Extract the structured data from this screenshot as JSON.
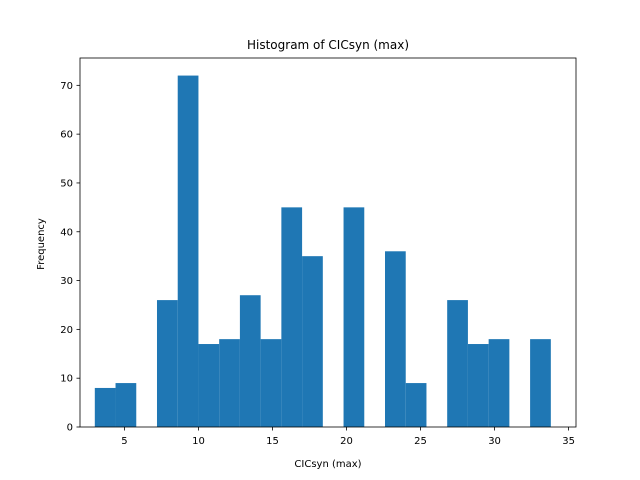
{
  "chart_data": {
    "type": "histogram",
    "title": "Histogram of CICsyn (max)",
    "xlabel": "CICsyn (max)",
    "ylabel": "Frequency",
    "xlim": [
      2.0,
      35.5
    ],
    "ylim": [
      0,
      75.6
    ],
    "xticks": [
      5,
      10,
      15,
      20,
      25,
      30,
      35
    ],
    "yticks": [
      0,
      10,
      20,
      30,
      40,
      50,
      60,
      70
    ],
    "bar_color": "#1f77b4",
    "grid": false,
    "bins": [
      {
        "x0": 3.0,
        "x1": 4.4,
        "count": 8
      },
      {
        "x0": 4.4,
        "x1": 5.8,
        "count": 9
      },
      {
        "x0": 5.8,
        "x1": 7.2,
        "count": 0
      },
      {
        "x0": 7.2,
        "x1": 8.6,
        "count": 26
      },
      {
        "x0": 8.6,
        "x1": 10.0,
        "count": 72
      },
      {
        "x0": 10.0,
        "x1": 11.4,
        "count": 17
      },
      {
        "x0": 11.4,
        "x1": 12.8,
        "count": 18
      },
      {
        "x0": 12.8,
        "x1": 14.2,
        "count": 27
      },
      {
        "x0": 14.2,
        "x1": 15.6,
        "count": 18
      },
      {
        "x0": 15.6,
        "x1": 17.0,
        "count": 45
      },
      {
        "x0": 17.0,
        "x1": 18.4,
        "count": 35
      },
      {
        "x0": 18.4,
        "x1": 19.8,
        "count": 0
      },
      {
        "x0": 19.8,
        "x1": 21.2,
        "count": 45
      },
      {
        "x0": 21.2,
        "x1": 22.6,
        "count": 0
      },
      {
        "x0": 22.6,
        "x1": 24.0,
        "count": 36
      },
      {
        "x0": 24.0,
        "x1": 25.4,
        "count": 9
      },
      {
        "x0": 25.4,
        "x1": 26.8,
        "count": 0
      },
      {
        "x0": 26.8,
        "x1": 28.2,
        "count": 26
      },
      {
        "x0": 28.2,
        "x1": 29.6,
        "count": 17
      },
      {
        "x0": 29.6,
        "x1": 31.0,
        "count": 18
      },
      {
        "x0": 31.0,
        "x1": 32.4,
        "count": 0
      },
      {
        "x0": 32.4,
        "x1": 33.8,
        "count": 18
      }
    ]
  }
}
